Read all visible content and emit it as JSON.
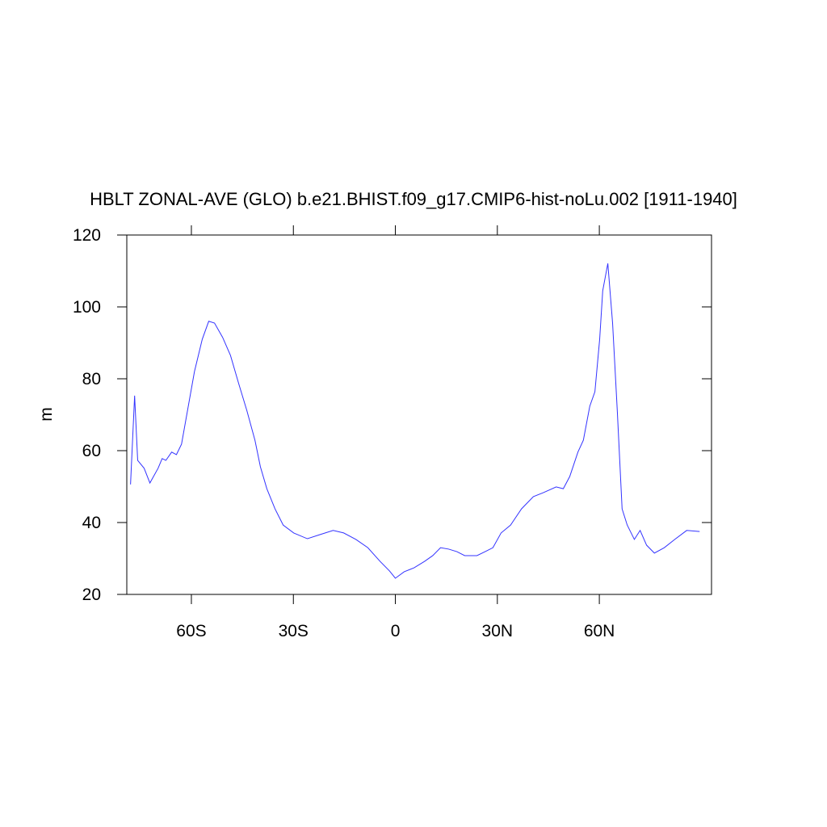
{
  "chart_data": {
    "type": "line",
    "title": "HBLT ZONAL-AVE (GLO) b.e21.BHIST.f09_g17.CMIP6-hist-noLu.002 [1911-1940]",
    "ylabel": "m",
    "xlim": [
      -79,
      93
    ],
    "xticks": [
      {
        "value": -60,
        "label": "60S"
      },
      {
        "value": -30,
        "label": "30S"
      },
      0,
      {
        "value": 30,
        "label": "30N"
      },
      {
        "value": 60,
        "label": "60N"
      }
    ],
    "ylim": [
      20,
      120
    ],
    "yticks": [
      20,
      40,
      60,
      80,
      100,
      120
    ],
    "grid": false,
    "series": [
      {
        "name": "HBLT",
        "color": "#3333ff",
        "x": [
          -77.9,
          -76.7,
          -75.8,
          -73.9,
          -72.2,
          -69.8,
          -68.6,
          -67.5,
          -65.8,
          -64.4,
          -62.9,
          -61.0,
          -59.1,
          -56.8,
          -54.9,
          -53.2,
          -50.8,
          -48.5,
          -46.1,
          -43.7,
          -41.3,
          -39.7,
          -37.8,
          -35.4,
          -33.0,
          -29.9,
          -25.9,
          -22.3,
          -18.3,
          -15.2,
          -11.6,
          -8.1,
          -4.5,
          -1.7,
          0,
          2.6,
          5.5,
          8.6,
          11.0,
          13.3,
          15.7,
          18.1,
          20.4,
          24.0,
          26.4,
          28.7,
          31.1,
          33.9,
          37.1,
          40.6,
          43.5,
          47.3,
          49.4,
          51.3,
          53.7,
          55.3,
          57.2,
          58.7,
          60.1,
          61.0,
          62.5,
          63.9,
          65.3,
          66.7,
          68.2,
          70.3,
          72.0,
          73.9,
          76.2,
          79.1,
          82.2,
          85.7,
          89.5
        ],
        "values": [
          50.6,
          75.3,
          57.3,
          55.1,
          51.0,
          55.1,
          57.8,
          57.3,
          59.6,
          58.9,
          61.8,
          71.9,
          82.0,
          91.0,
          96.0,
          95.5,
          91.5,
          86.5,
          78.7,
          71.2,
          62.9,
          55.5,
          49.4,
          43.8,
          39.3,
          37.1,
          35.5,
          36.6,
          37.8,
          37.1,
          35.3,
          33.0,
          29.2,
          26.5,
          24.5,
          26.3,
          27.4,
          29.2,
          30.8,
          33.0,
          32.6,
          31.9,
          30.8,
          30.8,
          31.9,
          33.0,
          37.1,
          39.3,
          43.8,
          47.2,
          48.3,
          49.9,
          49.4,
          52.8,
          59.6,
          62.9,
          72.4,
          76.4,
          91.0,
          104.5,
          112.1,
          95.5,
          70.8,
          43.8,
          39.3,
          35.3,
          37.8,
          33.7,
          31.5,
          33.0,
          35.3,
          37.8,
          37.5
        ]
      }
    ]
  }
}
